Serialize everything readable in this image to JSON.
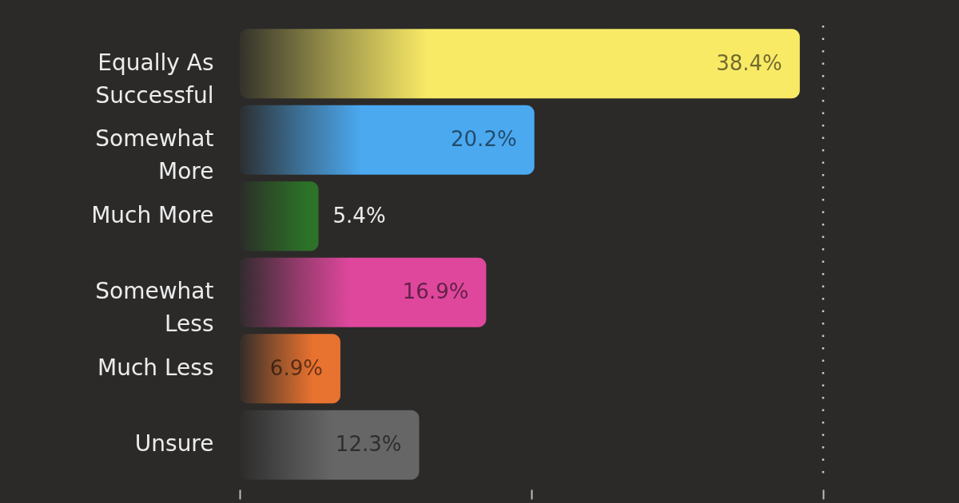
{
  "chart_data": {
    "type": "bar",
    "orientation": "horizontal",
    "categories": [
      "Equally As Successful",
      "Somewhat More",
      "Much More",
      "Somewhat Less",
      "Much Less",
      "Unsure"
    ],
    "values": [
      38.4,
      20.2,
      5.4,
      16.9,
      6.9,
      12.3
    ],
    "value_labels": [
      "38.4%",
      "20.2%",
      "5.4%",
      "16.9%",
      "6.9%",
      "12.3%"
    ],
    "colors": [
      "#f9ea66",
      "#4ba9f0",
      "#2c7228",
      "#de479c",
      "#e8722f",
      "#666666"
    ],
    "tick_labels": "y",
    "ref_lines": [
      {
        "axis": "x",
        "value": 40,
        "line_style": "dotted",
        "color": "#c8c8c8"
      }
    ]
  }
}
